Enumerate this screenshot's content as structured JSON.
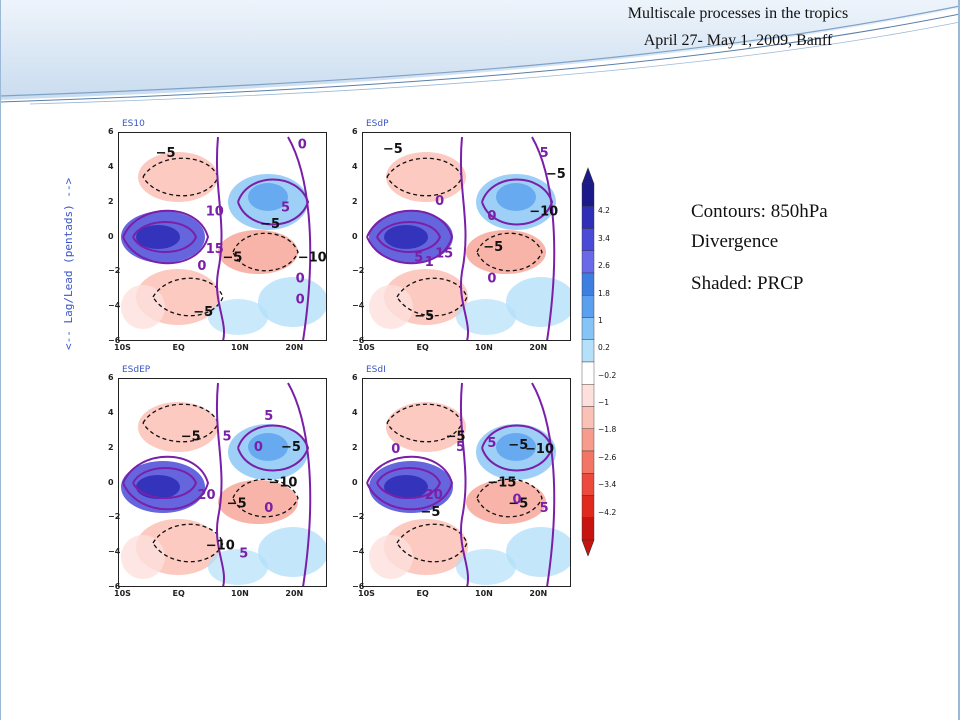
{
  "header": {
    "line1": "Multiscale processes in the tropics",
    "line2": "April 27- May 1, 2009, Banff"
  },
  "figure": {
    "y_axis_label": "<-- Lag/Lead (pentads) -->",
    "x_ticks": [
      "10S",
      "EQ",
      "10N",
      "20N"
    ],
    "y_ticks": [
      "6",
      "4",
      "2",
      "0",
      "-2",
      "-4",
      "-6"
    ],
    "panels": [
      {
        "title": "ES10",
        "labels": [
          "-5",
          "0",
          "10",
          "15",
          "0",
          "-5",
          "-5",
          "5",
          "-10",
          "0",
          "0",
          "-5"
        ]
      },
      {
        "title": "ESdP",
        "labels": [
          "-5",
          "5",
          "0",
          "-5",
          "-10",
          "5",
          "1",
          "15",
          "0",
          "0",
          "-5",
          "-5"
        ]
      },
      {
        "title": "ESdEP",
        "labels": [
          "-5",
          "5",
          "5",
          "0",
          "-5",
          "-10",
          "20",
          "-5",
          "0",
          "-10",
          "5"
        ]
      },
      {
        "title": "ESdI",
        "labels": [
          "-5",
          "0",
          "5",
          "5",
          "-5",
          "-10",
          "20",
          "-15",
          "-5",
          "0",
          "5",
          "-5"
        ]
      }
    ]
  },
  "colorbar": {
    "ticks": [
      "4.2",
      "3.4",
      "2.6",
      "1.8",
      "1",
      "0.2",
      "-0.2",
      "-1",
      "-1.8",
      "-2.6",
      "-3.4",
      "-4.2"
    ],
    "colors": [
      "#1a1a8a",
      "#2e2eb8",
      "#4a4ad8",
      "#6a6ae8",
      "#3d7fe0",
      "#5aa0ee",
      "#86c4f5",
      "#b4e0fa",
      "#ffffff",
      "#fde0dc",
      "#fbc1b6",
      "#f79b8c",
      "#f27565",
      "#ec4a3c",
      "#e02a1e",
      "#c81410"
    ]
  },
  "notes": {
    "contours_line1": "Contours: 850hPa",
    "contours_line2": "Divergence",
    "shaded": "Shaded: PRCP"
  },
  "colors": {
    "positive_contour": "#7a1fa8",
    "negative_contour": "#111111",
    "title_blue": "#3a55c8"
  }
}
